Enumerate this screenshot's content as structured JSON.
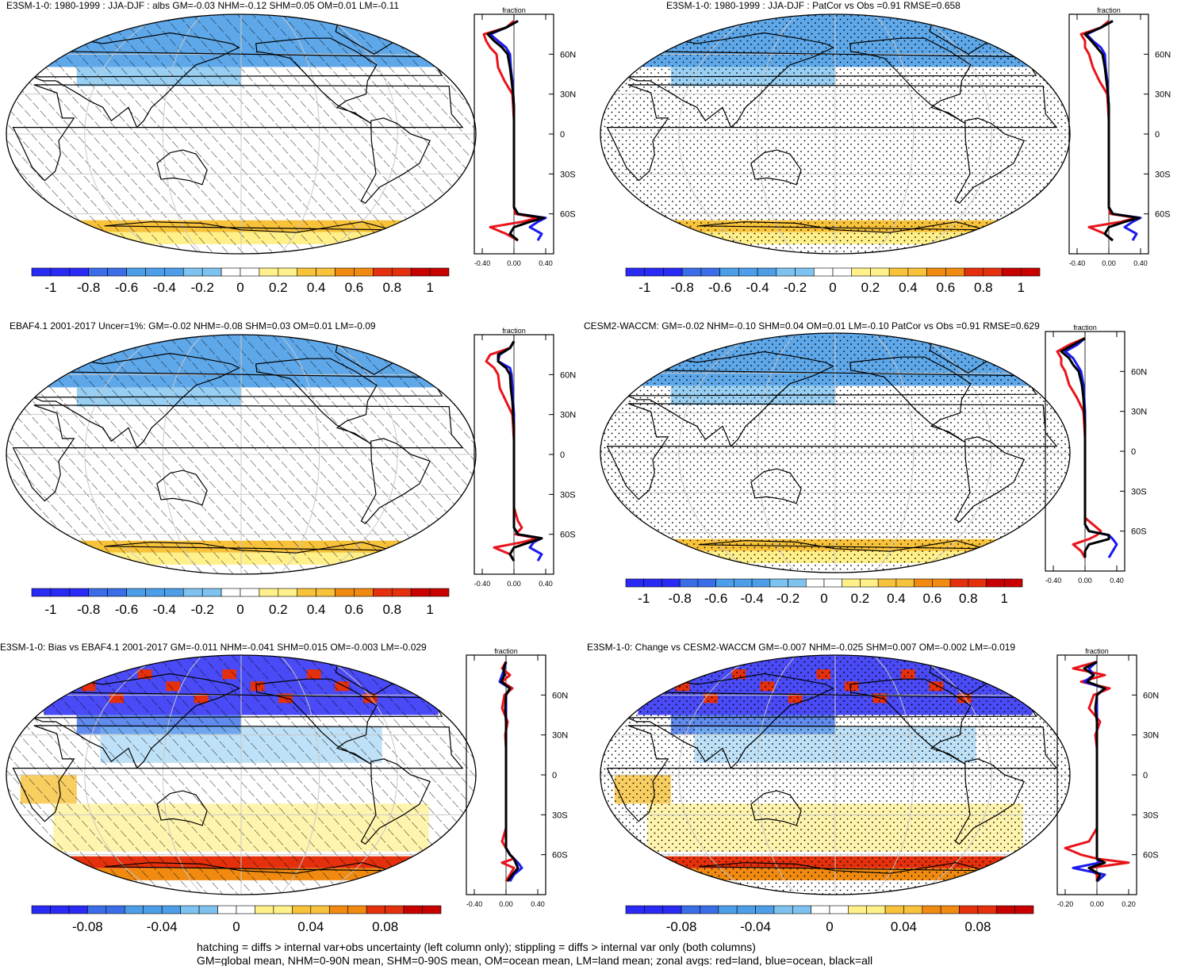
{
  "colormap_range": [
    "#2a2af5",
    "#3a6ee8",
    "#4c9ee8",
    "#7ec3f0",
    "#ffffff",
    "#fff08a",
    "#f8c23a",
    "#f08a10",
    "#e4300c",
    "#c80000"
  ],
  "footer": {
    "line1": "hatching = diffs > internal var+obs uncertainty (left column only); stippling = diffs > internal var only (both columns)",
    "line2": "GM=global mean, NHM=0-90N mean, SHM=0-90S mean, OM=ocean mean, LM=land mean; zonal avgs: red=land, blue=ocean, black=all"
  },
  "chart_data": [
    {
      "type": "map",
      "title": "E3SM-1-0: 1980-1999 : JJA-DJF : albs GM=-0.03 NHM=-0.12 SHM=0.05 OM=0.01 LM=-0.11",
      "overlay": "hatching",
      "colorbar": {
        "range": [
          -1.1,
          1.1
        ],
        "ticks": [
          "-1",
          "-0.8",
          "-0.6",
          "-0.4",
          "-0.2",
          "0",
          "0.2",
          "0.4",
          "0.6",
          "0.8",
          "1"
        ]
      },
      "zonal": {
        "xlabel": "fraction",
        "xticks": [
          "-0.40",
          "0.00",
          "0.40"
        ],
        "xlim": [
          -0.5,
          0.5
        ],
        "yticks": [
          "60N",
          "30N",
          "0",
          "30S",
          "60S"
        ],
        "lat": [
          85,
          80,
          75,
          70,
          65,
          60,
          50,
          40,
          30,
          20,
          10,
          0,
          -10,
          -20,
          -30,
          -40,
          -50,
          -55,
          -60,
          -63,
          -66,
          -70,
          -75,
          -80
        ],
        "land": [
          0.0,
          -0.1,
          -0.38,
          -0.35,
          -0.3,
          -0.22,
          -0.2,
          -0.12,
          -0.02,
          -0.01,
          0,
          0,
          0,
          0,
          0,
          0.0,
          0.0,
          0.0,
          0.02,
          0.3,
          0.1,
          -0.3,
          -0.1,
          0.05
        ],
        "ocean": [
          0.05,
          -0.1,
          -0.3,
          -0.2,
          -0.1,
          -0.05,
          -0.04,
          -0.02,
          -0.01,
          0,
          0,
          0,
          0,
          0,
          0,
          0,
          0,
          0,
          0.05,
          0.4,
          0.3,
          0.2,
          0.35,
          0.3
        ],
        "all": [
          0.05,
          -0.1,
          -0.33,
          -0.25,
          -0.15,
          -0.08,
          -0.05,
          -0.03,
          -0.01,
          0,
          0,
          0,
          0,
          0,
          0,
          0,
          0,
          0,
          0.05,
          0.38,
          0.2,
          0.0,
          -0.05,
          0.05
        ]
      }
    },
    {
      "type": "map",
      "title": "E3SM-1-0: 1980-1999 : JJA-DJF : PatCor vs Obs =0.91 RMSE=0.658",
      "overlay": "stippling",
      "colorbar": {
        "range": [
          -1.1,
          1.1
        ],
        "ticks": [
          "-1",
          "-0.8",
          "-0.6",
          "-0.4",
          "-0.2",
          "0",
          "0.2",
          "0.4",
          "0.6",
          "0.8",
          "1"
        ]
      },
      "zonal": {
        "xlabel": "fraction",
        "xticks": [
          "-0.40",
          "0.00",
          "0.40"
        ],
        "xlim": [
          -0.5,
          0.5
        ],
        "yticks": [
          "60N",
          "30N",
          "0",
          "30S",
          "60S"
        ],
        "lat": [
          85,
          80,
          75,
          70,
          65,
          60,
          50,
          40,
          30,
          20,
          10,
          0,
          -10,
          -20,
          -30,
          -40,
          -50,
          -55,
          -60,
          -63,
          -66,
          -70,
          -75,
          -80
        ],
        "land": [
          0.0,
          -0.1,
          -0.35,
          -0.3,
          -0.3,
          -0.25,
          -0.2,
          -0.12,
          -0.02,
          -0.01,
          0,
          0,
          0,
          0,
          0,
          0,
          0,
          0,
          0.02,
          0.35,
          0.15,
          -0.25,
          -0.05,
          0.05
        ],
        "ocean": [
          0.05,
          -0.1,
          -0.28,
          -0.2,
          -0.1,
          -0.05,
          -0.04,
          -0.02,
          -0.01,
          0,
          0,
          0,
          0,
          0,
          0,
          0,
          0,
          0,
          0.05,
          0.4,
          0.3,
          0.2,
          0.35,
          0.3
        ],
        "all": [
          0.05,
          -0.1,
          -0.3,
          -0.22,
          -0.15,
          -0.08,
          -0.05,
          -0.03,
          -0.01,
          0,
          0,
          0,
          0,
          0,
          0,
          0,
          0,
          0,
          0.05,
          0.38,
          0.2,
          0.0,
          -0.05,
          0.05
        ]
      }
    },
    {
      "type": "map",
      "title": "EBAF4.1 2001-2017 Uncer=1%: GM=-0.02 NHM=-0.08 SHM=0.03 OM=0.01 LM=-0.09",
      "overlay": "hatching",
      "colorbar": {
        "range": [
          -1.1,
          1.1
        ],
        "ticks": [
          "-1",
          "-0.8",
          "-0.6",
          "-0.4",
          "-0.2",
          "0",
          "0.2",
          "0.4",
          "0.6",
          "0.8",
          "1"
        ]
      },
      "zonal": {
        "xlabel": "fraction",
        "xticks": [
          "-0.40",
          "0.00",
          "0.40"
        ],
        "xlim": [
          -0.5,
          0.5
        ],
        "yticks": [
          "60N",
          "30N",
          "0",
          "30S",
          "60S"
        ],
        "lat": [
          85,
          80,
          75,
          70,
          65,
          60,
          50,
          40,
          30,
          20,
          10,
          0,
          -10,
          -20,
          -30,
          -40,
          -50,
          -55,
          -60,
          -63,
          -66,
          -70,
          -75,
          -80
        ],
        "land": [
          0.0,
          -0.05,
          -0.3,
          -0.35,
          -0.25,
          -0.2,
          -0.18,
          -0.1,
          -0.02,
          -0.01,
          0,
          0,
          0,
          0,
          0,
          0,
          0.05,
          0.1,
          0.02,
          0.3,
          0.1,
          -0.25,
          -0.05,
          0.0
        ],
        "ocean": [
          0.0,
          -0.05,
          -0.18,
          -0.2,
          -0.05,
          -0.03,
          -0.02,
          -0.01,
          0,
          0,
          0,
          0,
          0,
          0,
          0,
          0,
          0,
          0,
          0.05,
          0.35,
          0.25,
          0.2,
          0.35,
          0.3
        ],
        "all": [
          0.0,
          -0.05,
          -0.2,
          -0.2,
          -0.1,
          -0.05,
          -0.04,
          -0.02,
          -0.01,
          0,
          0,
          0,
          0,
          0,
          0,
          0,
          0,
          0,
          0.05,
          0.35,
          0.2,
          0.0,
          -0.05,
          0.0
        ]
      }
    },
    {
      "type": "map",
      "title": "CESM2-WACCM: GM=-0.02 NHM=-0.10 SHM=0.04 OM=0.01 LM=-0.10 PatCor vs Obs =0.91 RMSE=0.629",
      "overlay": "stippling",
      "colorbar": {
        "range": [
          -1.1,
          1.1
        ],
        "ticks": [
          "-1",
          "-0.8",
          "-0.6",
          "-0.4",
          "-0.2",
          "0",
          "0.2",
          "0.4",
          "0.6",
          "0.8",
          "1"
        ]
      },
      "zonal": {
        "xlabel": "fraction",
        "xticks": [
          "-0.40",
          "0.00",
          "0.40"
        ],
        "xlim": [
          -0.5,
          0.5
        ],
        "yticks": [
          "60N",
          "30N",
          "0",
          "30S",
          "60S"
        ],
        "lat": [
          85,
          80,
          75,
          70,
          65,
          60,
          50,
          40,
          30,
          20,
          10,
          0,
          -10,
          -20,
          -30,
          -40,
          -50,
          -55,
          -60,
          -63,
          -66,
          -70,
          -75,
          -80
        ],
        "land": [
          0.0,
          -0.2,
          -0.35,
          -0.3,
          -0.3,
          -0.25,
          -0.2,
          -0.1,
          -0.02,
          -0.01,
          0,
          0,
          0,
          0,
          0,
          0,
          0,
          0.1,
          0.2,
          0.15,
          0.05,
          -0.15,
          -0.05,
          0.0
        ],
        "ocean": [
          0.0,
          -0.1,
          -0.25,
          -0.15,
          -0.1,
          -0.05,
          -0.02,
          -0.01,
          0,
          0,
          0,
          0,
          0,
          0,
          0,
          0,
          0,
          0,
          0.05,
          0.3,
          0.35,
          0.4,
          0.35,
          0.3
        ],
        "all": [
          0.0,
          -0.15,
          -0.3,
          -0.2,
          -0.15,
          -0.08,
          -0.04,
          -0.02,
          -0.01,
          0,
          0,
          0,
          0,
          0,
          0,
          0,
          0,
          0,
          0.05,
          0.3,
          0.3,
          0.05,
          0.0,
          0.0
        ]
      }
    },
    {
      "type": "map",
      "title": "E3SM-1-0: Bias vs EBAF4.1 2001-2017 GM=-0.011 NHM=-0.041 SHM=0.015 OM=-0.003 LM=-0.029",
      "overlay": "hatching",
      "colorbar": {
        "range": [
          -0.11,
          0.11
        ],
        "ticks": [
          "-0.08",
          "-0.04",
          "0",
          "0.04",
          "0.08"
        ]
      },
      "zonal": {
        "xlabel": "fraction",
        "xticks": [
          "-0.40",
          "0.00",
          "0.40"
        ],
        "xlim": [
          -0.5,
          0.5
        ],
        "yticks": [
          "60N",
          "30N",
          "0",
          "30S",
          "60S"
        ],
        "lat": [
          85,
          80,
          75,
          70,
          65,
          60,
          50,
          40,
          30,
          20,
          10,
          0,
          -10,
          -20,
          -30,
          -40,
          -50,
          -55,
          -60,
          -63,
          -66,
          -70,
          -75,
          -80
        ],
        "land": [
          0.0,
          -0.05,
          0.05,
          -0.05,
          0.08,
          -0.02,
          -0.05,
          0.02,
          -0.01,
          0,
          0,
          0,
          0,
          0,
          0,
          0,
          -0.05,
          0.0,
          0.05,
          0.1,
          -0.05,
          0.1,
          0.05,
          0.0
        ],
        "ocean": [
          0.0,
          -0.02,
          -0.05,
          -0.08,
          0.05,
          0.0,
          0,
          0,
          0,
          0,
          0,
          0,
          0,
          0,
          0,
          0,
          0,
          0,
          0.05,
          0.1,
          0.15,
          0.2,
          0.1,
          0.05
        ],
        "all": [
          0.0,
          -0.03,
          -0.02,
          -0.06,
          0.05,
          0.0,
          -0.01,
          0,
          0,
          0,
          0,
          0,
          0,
          0,
          0,
          0,
          0,
          0,
          0.05,
          0.1,
          0.12,
          0.15,
          0.08,
          0.02
        ]
      }
    },
    {
      "type": "map",
      "title": "E3SM-1-0: Change vs CESM2-WACCM GM=-0.007 NHM=-0.025 SHM=0.007 OM=-0.002 LM=-0.019",
      "overlay": "stippling",
      "colorbar": {
        "range": [
          -0.11,
          0.11
        ],
        "ticks": [
          "-0.08",
          "-0.04",
          "0",
          "0.04",
          "0.08"
        ]
      },
      "zonal": {
        "xlabel": "fraction",
        "xticks": [
          "-0.20",
          "0.00",
          "0.20"
        ],
        "xlim": [
          -0.25,
          0.25
        ],
        "yticks": [
          "60N",
          "30N",
          "0",
          "30S",
          "60S"
        ],
        "lat": [
          85,
          80,
          75,
          70,
          65,
          60,
          50,
          40,
          30,
          20,
          10,
          0,
          -10,
          -20,
          -30,
          -40,
          -50,
          -55,
          -60,
          -63,
          -66,
          -70,
          -75,
          -80
        ],
        "land": [
          0.0,
          -0.15,
          0.05,
          -0.1,
          0.08,
          -0.02,
          -0.05,
          0.02,
          -0.01,
          0,
          0,
          0,
          0,
          0,
          0,
          0,
          -0.05,
          -0.2,
          -0.1,
          0.0,
          0.2,
          -0.05,
          0.0,
          0.0
        ],
        "ocean": [
          0.0,
          -0.05,
          -0.02,
          -0.08,
          0.05,
          0.0,
          0,
          0,
          0,
          0,
          0,
          0,
          0,
          0,
          0,
          0,
          0,
          0,
          0.0,
          0.0,
          0.02,
          -0.15,
          0.05,
          0.0
        ],
        "all": [
          0.0,
          -0.08,
          -0.02,
          -0.06,
          0.05,
          0.0,
          -0.01,
          0,
          0,
          0,
          0,
          0,
          0,
          0,
          0,
          0,
          0,
          0,
          0.0,
          0.0,
          0.05,
          -0.05,
          0.02,
          0.0
        ]
      }
    }
  ]
}
